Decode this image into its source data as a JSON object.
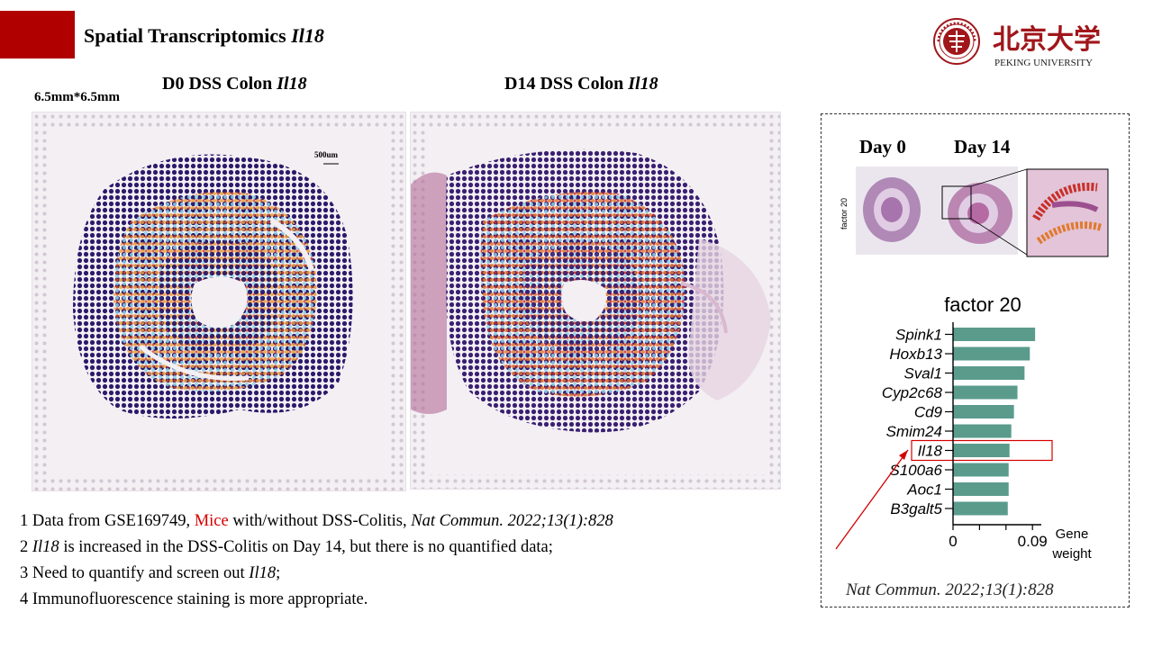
{
  "header": {
    "title": "Spatial Transcriptomics ",
    "title_gene": "Il18",
    "logo_text": "PEKING UNIVERSITY",
    "logo_chinese": "北京大学"
  },
  "panels": {
    "dimension_label": "6.5mm*6.5mm",
    "d0_title": "D0 DSS Colon ",
    "d14_title": "D14 DSS Colon ",
    "gene": "Il18",
    "scale_bar_label": "500um"
  },
  "notes": [
    {
      "prefix": "1 Data from GSE169749, ",
      "highlight": "Mice",
      "suffix": " with/without DSS-Colitis, ",
      "italic": "Nat Commun. 2022;13(1):828"
    },
    {
      "gene": "Il18",
      "text": " is increased in the DSS-Colitis on Day 14, but there is no quantified data;"
    },
    {
      "text": "3 Need to quantify and screen out ",
      "gene": "Il18",
      "suffix": ";"
    },
    {
      "text": "4 Immunofluorescence staining is more appropriate."
    }
  ],
  "reference_panel": {
    "day0_label": "Day 0",
    "day14_label": "Day 14",
    "side_label": "factor 20",
    "citation": "Nat Commun. 2022;13(1):828"
  },
  "chart_data": {
    "type": "bar",
    "orientation": "horizontal",
    "title": "factor 20",
    "categories": [
      "Spink1",
      "Hoxb13",
      "Sval1",
      "Cyp2c68",
      "Cd9",
      "Smim24",
      "Il18",
      "S100a6",
      "Aoc1",
      "B3galt5"
    ],
    "values": [
      0.093,
      0.087,
      0.081,
      0.073,
      0.069,
      0.066,
      0.064,
      0.063,
      0.063,
      0.062
    ],
    "xlim": [
      0,
      0.1
    ],
    "xticks": [
      0,
      0.09
    ],
    "xlabel": "Gene\nweight",
    "ylabel": "",
    "bar_color": "#5a9b8c",
    "highlight_category": "Il18",
    "highlight_color": "#d40000"
  },
  "colors": {
    "accent": "#b00000",
    "highlight": "#d40000",
    "bar": "#5a9b8c"
  }
}
